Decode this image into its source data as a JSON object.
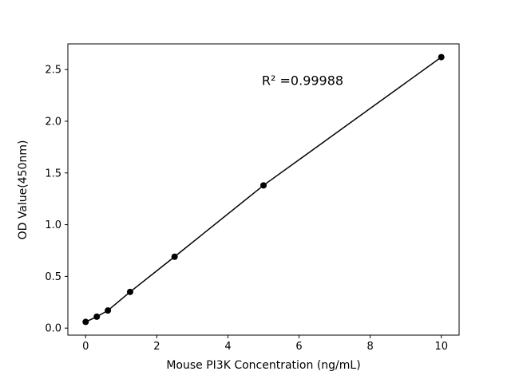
{
  "figure": {
    "background": "#ffffff"
  },
  "chart_data": {
    "type": "line",
    "markers": true,
    "title": "",
    "xlabel": "Mouse PI3K Concentration (ng/mL)",
    "ylabel": "OD Value(450nm)",
    "x": [
      0,
      0.313,
      0.625,
      1.25,
      2.5,
      5,
      10
    ],
    "y": [
      0.06,
      0.11,
      0.17,
      0.35,
      0.69,
      1.38,
      2.62
    ],
    "xticks": [
      0,
      2,
      4,
      6,
      8,
      10
    ],
    "yticks": [
      0,
      0.5,
      1,
      1.5,
      2,
      2.5
    ],
    "xlim": [
      -0.5,
      10.5
    ],
    "ylim": [
      -0.068,
      2.748
    ],
    "grid": false,
    "legend": null,
    "line_color": "#000000",
    "marker_color": "#000000",
    "annotation": {
      "text": "R² =0.99988",
      "x": 6.1,
      "y": 2.35
    }
  }
}
